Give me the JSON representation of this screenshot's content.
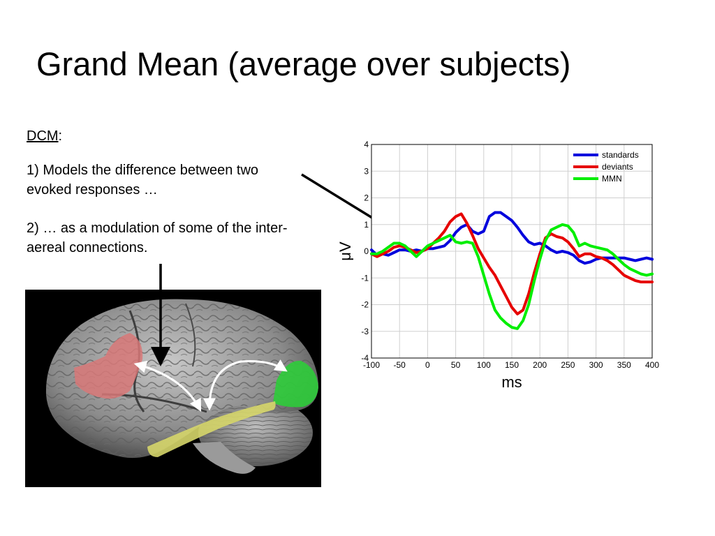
{
  "slide": {
    "title": "Grand Mean (average over subjects)",
    "dcm_label": "DCM",
    "dcm_colon": ":",
    "point1": "1) Models the difference between two evoked responses …",
    "point2": "2) … as a modulation of some of the inter-aereal connections."
  },
  "colors": {
    "standards": "#0000dd",
    "deviants": "#e60000",
    "mmn": "#00ee00",
    "brain_red": "#d87878",
    "brain_green": "#2ecc3a",
    "brain_yellow": "#d6d66a"
  },
  "chart_data": {
    "type": "line",
    "xlabel": "ms",
    "ylabel": "μV",
    "xlim": [
      -100,
      400
    ],
    "ylim": [
      -4,
      4
    ],
    "grid": true,
    "legend_position": "top-right",
    "x_ticks": [
      "-100",
      "-50",
      "0",
      "50",
      "100",
      "150",
      "200",
      "250",
      "300",
      "350",
      "400"
    ],
    "y_ticks": [
      "4",
      "3",
      "2",
      "1",
      "0",
      "-1",
      "-2",
      "-3",
      "-4"
    ],
    "x": [
      -100,
      -90,
      -80,
      -70,
      -60,
      -50,
      -40,
      -30,
      -20,
      -10,
      0,
      10,
      20,
      30,
      40,
      50,
      60,
      70,
      80,
      90,
      100,
      110,
      120,
      130,
      140,
      150,
      160,
      170,
      180,
      190,
      200,
      210,
      220,
      230,
      240,
      250,
      260,
      270,
      280,
      290,
      300,
      310,
      320,
      330,
      340,
      350,
      360,
      370,
      380,
      390,
      400
    ],
    "series": [
      {
        "name": "standards",
        "color": "#0000dd",
        "values": [
          0.05,
          -0.15,
          -0.1,
          -0.15,
          -0.05,
          0.05,
          0.05,
          0.0,
          0.05,
          0.0,
          0.1,
          0.1,
          0.15,
          0.2,
          0.4,
          0.7,
          0.9,
          1.0,
          0.75,
          0.65,
          0.75,
          1.3,
          1.45,
          1.45,
          1.3,
          1.15,
          0.9,
          0.6,
          0.35,
          0.25,
          0.3,
          0.2,
          0.05,
          -0.05,
          0.0,
          -0.05,
          -0.15,
          -0.35,
          -0.45,
          -0.4,
          -0.3,
          -0.25,
          -0.25,
          -0.25,
          -0.25,
          -0.25,
          -0.3,
          -0.35,
          -0.3,
          -0.25,
          -0.3
        ]
      },
      {
        "name": "deviants",
        "color": "#e60000",
        "values": [
          -0.1,
          -0.2,
          -0.1,
          0.0,
          0.15,
          0.2,
          0.15,
          0.05,
          -0.05,
          0.0,
          0.1,
          0.3,
          0.5,
          0.75,
          1.1,
          1.3,
          1.4,
          1.05,
          0.6,
          0.1,
          -0.25,
          -0.6,
          -0.9,
          -1.3,
          -1.7,
          -2.1,
          -2.35,
          -2.2,
          -1.6,
          -0.8,
          -0.1,
          0.5,
          0.65,
          0.55,
          0.5,
          0.35,
          0.1,
          -0.2,
          -0.1,
          -0.1,
          -0.2,
          -0.25,
          -0.35,
          -0.5,
          -0.7,
          -0.9,
          -1.0,
          -1.1,
          -1.15,
          -1.15,
          -1.15
        ]
      },
      {
        "name": "MMN",
        "color": "#00ee00",
        "values": [
          -0.1,
          -0.1,
          0.0,
          0.15,
          0.3,
          0.3,
          0.2,
          0.0,
          -0.2,
          0.0,
          0.2,
          0.3,
          0.4,
          0.5,
          0.6,
          0.35,
          0.3,
          0.35,
          0.3,
          -0.2,
          -0.9,
          -1.6,
          -2.2,
          -2.5,
          -2.7,
          -2.85,
          -2.9,
          -2.6,
          -2.0,
          -1.1,
          -0.3,
          0.4,
          0.8,
          0.9,
          1.0,
          0.95,
          0.7,
          0.2,
          0.3,
          0.2,
          0.15,
          0.1,
          0.05,
          -0.1,
          -0.3,
          -0.5,
          -0.65,
          -0.75,
          -0.85,
          -0.9,
          -0.85
        ]
      }
    ]
  }
}
